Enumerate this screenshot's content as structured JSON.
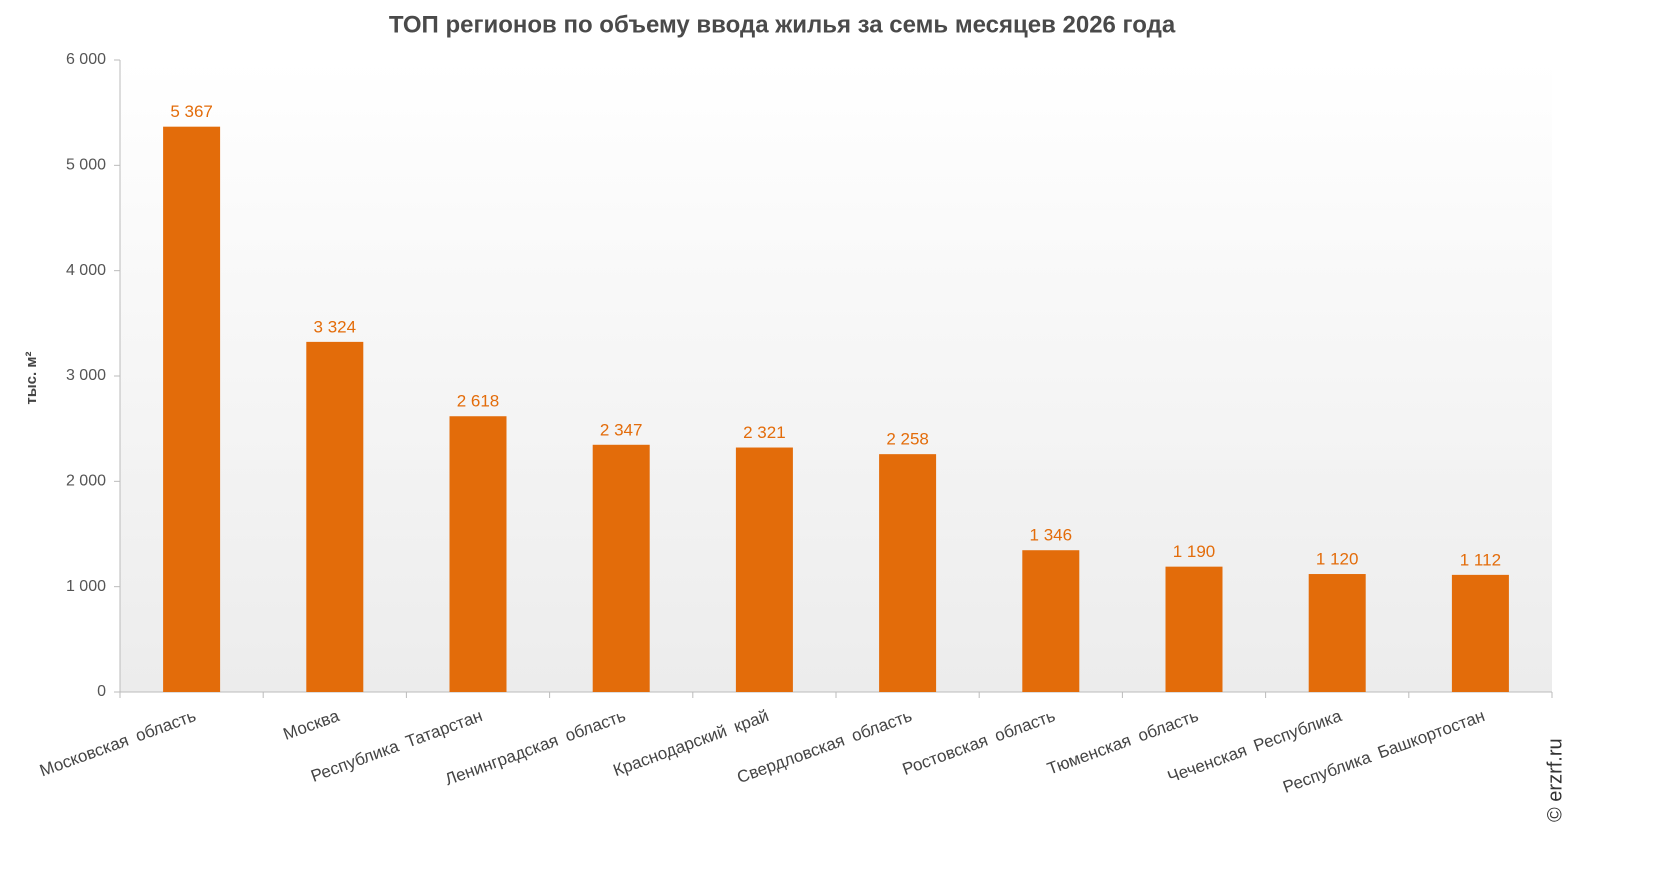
{
  "chart_data": {
    "type": "bar",
    "title": "ТОП регионов по объему ввода жилья за семь месяцев 2026 года",
    "y_label": "тыс. м²",
    "source": "© erzrf.ru",
    "categories": [
      "Московская область",
      "Москва",
      "Республика Татарстан",
      "Ленинградская область",
      "Краснодарский край",
      "Свердловская область",
      "Ростовская область",
      "Тюменская область",
      "Чеченская Республика",
      "Республика Башкортостан"
    ],
    "values": [
      5367,
      3324,
      2618,
      2347,
      2321,
      2258,
      1346,
      1190,
      1120,
      1112
    ],
    "value_labels": [
      "5 367",
      "3 324",
      "2 618",
      "2 347",
      "2 321",
      "2 258",
      "1 346",
      "1 190",
      "1 120",
      "1 112"
    ],
    "color": "#e36c0a",
    "ylim": [
      0,
      6000
    ],
    "yticks": [
      0,
      {
        "value": 1000,
        "label": "1 000"
      },
      {
        "value": 2000,
        "label": "2 000"
      },
      {
        "value": 3000,
        "label": "3 000"
      },
      {
        "value": 4000,
        "label": "4 000"
      },
      {
        "value": 5000,
        "label": "5 000"
      },
      {
        "value": 6000,
        "label": "6 000"
      }
    ],
    "grid": false
  }
}
